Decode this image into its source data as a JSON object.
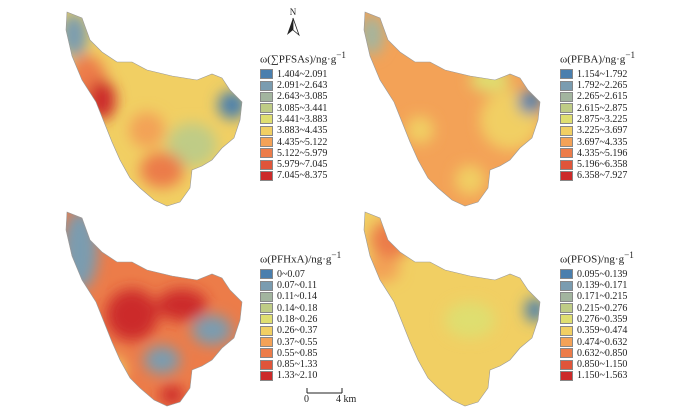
{
  "north_label": "N",
  "scale": {
    "zero": "0",
    "dist": "4 km"
  },
  "colors": {
    "ramp": [
      "#4a7fae",
      "#7a9cb0",
      "#a3b59f",
      "#bfcc86",
      "#dfde70",
      "#f1cf63",
      "#f3a257",
      "#ec7c49",
      "#e0553a",
      "#cc2a2a"
    ]
  },
  "panels": [
    {
      "id": "pfsas",
      "title_prefix": "ω(∑PFSAs)/ng·g",
      "title_sup": "−1",
      "legend": [
        "1.404~2.091",
        "2.091~2.643",
        "2.643~3.085",
        "3.085~3.441",
        "3.441~3.883",
        "3.883~4.435",
        "4.435~5.122",
        "5.122~5.979",
        "5.979~7.045",
        "7.045~8.375"
      ]
    },
    {
      "id": "pfba",
      "title_prefix": "ω(PFBA)/ng·g",
      "title_sup": "−1",
      "legend": [
        "1.154~1.792",
        "1.792~2.265",
        "2.265~2.615",
        "2.615~2.875",
        "2.875~3.225",
        "3.225~3.697",
        "3.697~4.335",
        "4.335~5.196",
        "5.196~6.358",
        "6.358~7.927"
      ]
    },
    {
      "id": "pfhxa",
      "title_prefix": "ω(PFHxA)/ng·g",
      "title_sup": "−1",
      "legend": [
        "0~0.07",
        "0.07~0.11",
        "0.11~0.14",
        "0.14~0.18",
        "0.18~0.26",
        "0.26~0.37",
        "0.37~0.55",
        "0.55~0.85",
        "0.85~1.33",
        "1.33~2.10"
      ]
    },
    {
      "id": "pfos",
      "title_prefix": "ω(PFOS)/ng·g",
      "title_sup": "−1",
      "legend": [
        "0.095~0.139",
        "0.139~0.171",
        "0.171~0.215",
        "0.215~0.276",
        "0.276~0.359",
        "0.359~0.474",
        "0.474~0.632",
        "0.632~0.850",
        "0.850~1.150",
        "1.150~1.563"
      ]
    }
  ]
}
